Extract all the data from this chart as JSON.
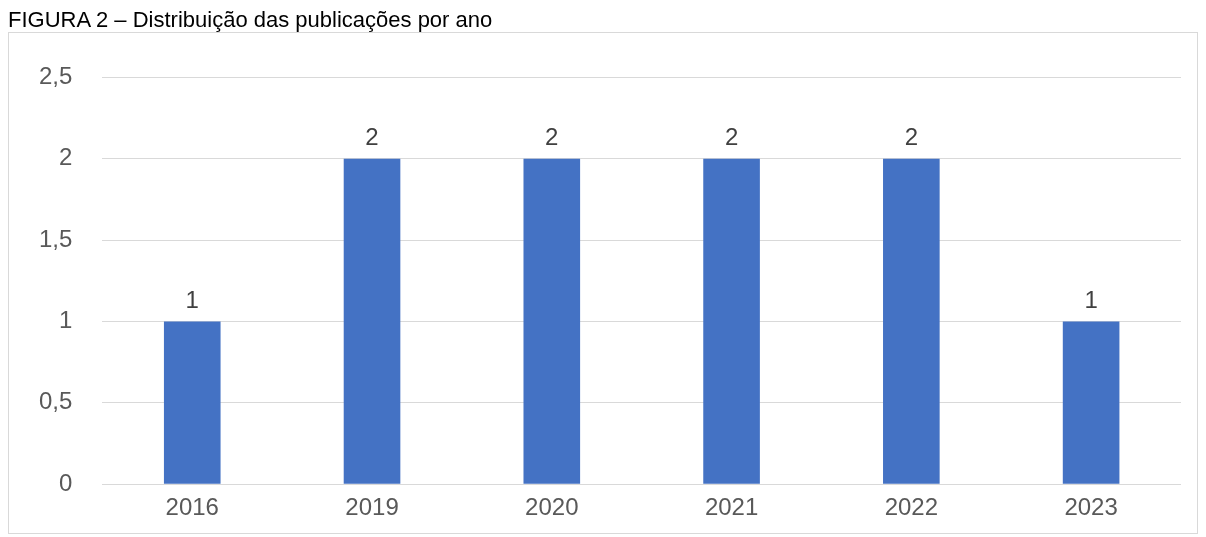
{
  "chart_data": {
    "type": "bar",
    "title": "FIGURA 2 – Distribuição das publicações por ano",
    "categories": [
      "2016",
      "2019",
      "2020",
      "2021",
      "2022",
      "2023"
    ],
    "values": [
      1,
      2,
      2,
      2,
      2,
      1
    ],
    "color": "#4472c4",
    "ylim": [
      0,
      2.5
    ],
    "yticks": [
      0,
      {
        "value": 0.5,
        "label": "0,5"
      },
      1,
      {
        "value": 1.5,
        "label": "1,5"
      },
      2,
      {
        "value": 2.5,
        "label": "2,5"
      }
    ],
    "grid": "y",
    "data_labels": true,
    "legend": false
  }
}
